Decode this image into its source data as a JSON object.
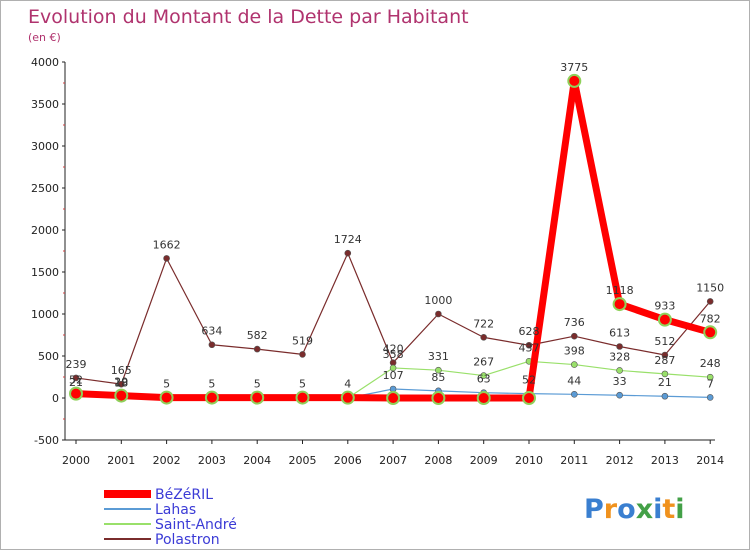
{
  "chart_data": {
    "type": "line",
    "title": "Evolution du Montant de la Dette par Habitant",
    "subtitle": "(en €)",
    "x": [
      "2000",
      "2001",
      "2002",
      "2003",
      "2004",
      "2005",
      "2006",
      "2007",
      "2008",
      "2009",
      "2010",
      "2011",
      "2012",
      "2013",
      "2014"
    ],
    "ylim": [
      -500,
      4000
    ],
    "yticks": [
      -500,
      0,
      500,
      1000,
      1500,
      2000,
      2500,
      3000,
      3500,
      4000
    ],
    "grid": false,
    "legend_position": "bottom-left",
    "series": [
      {
        "name": "BéZéRIL",
        "color": "#ff0000",
        "values": [
          52,
          29,
          5,
          5,
          5,
          5,
          4,
          0,
          0,
          0,
          0,
          3775,
          1118,
          933,
          782
        ],
        "labels": [
          "52",
          "29",
          "5",
          "5",
          "5",
          "5",
          "4",
          "",
          "",
          "",
          "",
          "3775",
          "1118",
          "933",
          "782"
        ]
      },
      {
        "name": "Lahas",
        "color": "#5b9bd5",
        "values": [
          21,
          18,
          0,
          0,
          0,
          0,
          0,
          107,
          85,
          63,
          52,
          44,
          33,
          21,
          7
        ],
        "labels": [
          "21",
          "18",
          "",
          "",
          "",
          "",
          "",
          "107",
          "85",
          "63",
          "52",
          "44",
          "33",
          "21",
          "7"
        ]
      },
      {
        "name": "Saint-André",
        "color": "#99e06a",
        "values": [
          58,
          17,
          0,
          0,
          0,
          0,
          0,
          358,
          331,
          267,
          437,
          398,
          328,
          287,
          248
        ],
        "labels": [
          "",
          "",
          "",
          "",
          "",
          "",
          "",
          "358",
          "331",
          "267",
          "437",
          "398",
          "328",
          "287",
          "248"
        ]
      },
      {
        "name": "Polastron",
        "color": "#7a2c2c",
        "values": [
          239,
          165,
          1662,
          634,
          582,
          519,
          1724,
          420,
          1000,
          722,
          628,
          736,
          613,
          512,
          1150
        ],
        "labels": [
          "239",
          "165",
          "1662",
          "634",
          "582",
          "519",
          "1724",
          "420",
          "1000",
          "722",
          "628",
          "736",
          "613",
          "512",
          "1150"
        ]
      }
    ]
  },
  "logo": {
    "text": "Proxiti",
    "colors": [
      "#3a7fd0",
      "#f0921e",
      "#3a7fd0",
      "#43a047",
      "#3a7fd0",
      "#f0921e",
      "#43a047"
    ]
  }
}
